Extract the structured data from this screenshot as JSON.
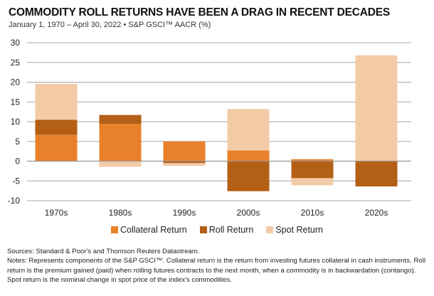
{
  "header": {
    "title": "COMMODITY ROLL RETURNS HAVE BEEN A DRAG IN RECENT DECADES",
    "subtitle": "January 1, 1970 – April 30, 2022 • S&P GSCI™ AACR (%)"
  },
  "chart_data": {
    "type": "bar",
    "stacked": true,
    "title": "COMMODITY ROLL RETURNS HAVE BEEN A DRAG IN RECENT DECADES",
    "subtitle": "January 1, 1970 – April 30, 2022 • S&P GSCI™ AACR (%)",
    "xlabel": "",
    "ylabel": "",
    "categories": [
      "1970s",
      "1980s",
      "1990s",
      "2000s",
      "2010s",
      "2020s"
    ],
    "ylim": [
      -10,
      30
    ],
    "yticks": [
      30,
      25,
      20,
      15,
      10,
      5,
      0,
      -5,
      -10
    ],
    "grid": true,
    "legend_position": "bottom-center",
    "series": [
      {
        "name": "Collateral Return",
        "color": "#E8812A",
        "values": [
          6.7,
          9.4,
          5.0,
          2.7,
          0.5,
          0.1
        ]
      },
      {
        "name": "Roll Return",
        "color": "#B35F16",
        "values": [
          3.8,
          2.3,
          -0.5,
          -7.6,
          -4.3,
          -6.4
        ]
      },
      {
        "name": "Spot Return",
        "color": "#F4CBA7",
        "values": [
          9.1,
          -1.4,
          -0.7,
          10.5,
          -1.8,
          26.7
        ]
      }
    ]
  },
  "legend": [
    {
      "label": "Collateral Return",
      "color": "#E8812A"
    },
    {
      "label": "Roll Return",
      "color": "#B35F16"
    },
    {
      "label": "Spot Return",
      "color": "#F4CBA7"
    }
  ],
  "footer": {
    "sources": "Sources: Standard & Poor's and Thomson Reuters Datastream.",
    "notes": "Notes: Represents components of the S&P GSCI™. Collateral return is the return from investing futures collateral in cash instruments. Roll return is the premium gained (paid) when rolling futures contracts to the next month, when a commodity is in backwardation (contango). Spot return is the nominal change in spot price of the index's commodities."
  }
}
